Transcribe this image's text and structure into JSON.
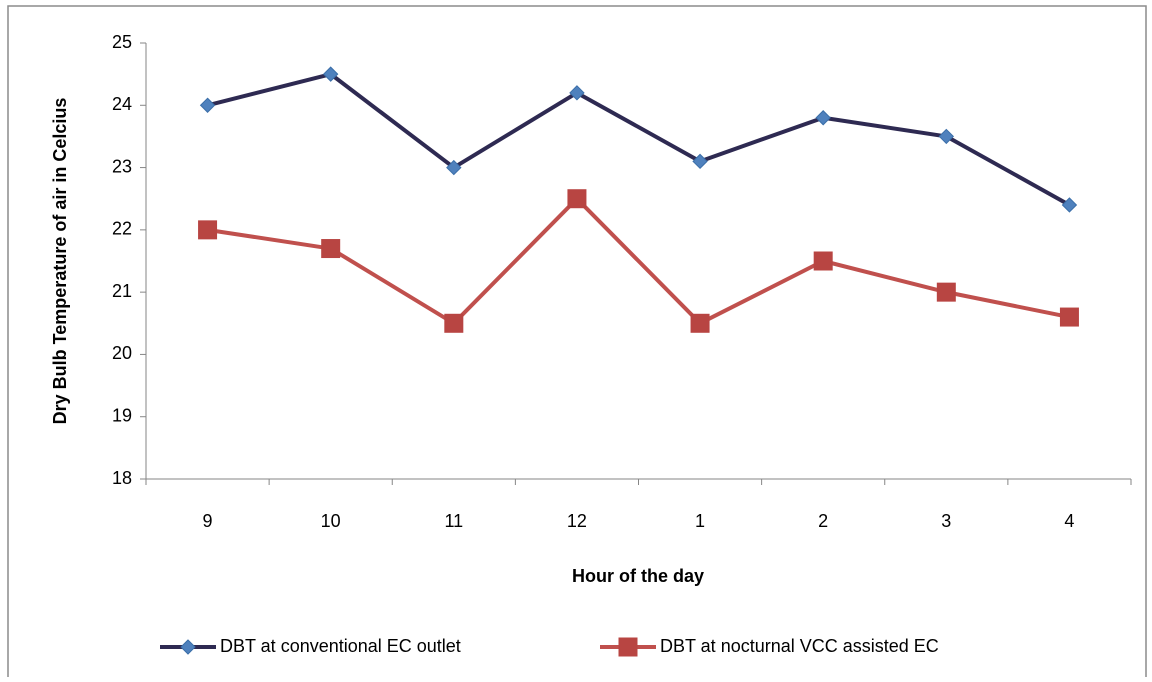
{
  "chart_data": {
    "type": "line",
    "categories": [
      "9",
      "10",
      "11",
      "12",
      "1",
      "2",
      "3",
      "4"
    ],
    "series": [
      {
        "name": "DBT at conventional EC outlet",
        "color": "#2e2a52",
        "marker_color": "#4f81bd",
        "marker": "diamond",
        "values": [
          24,
          24.5,
          23,
          24.2,
          23.1,
          23.8,
          23.5,
          22.4
        ]
      },
      {
        "name": "DBT at nocturnal VCC assisted EC",
        "color": "#c0504d",
        "marker_color": "#b84542",
        "marker": "square",
        "values": [
          22,
          21.7,
          20.5,
          22.5,
          20.5,
          21.5,
          21,
          20.6
        ]
      }
    ],
    "xlabel": "Hour of the day",
    "ylabel": "Dry Bulb Temperature of air in Celcius",
    "ylim": [
      18,
      25
    ],
    "yticks": [
      18,
      19,
      20,
      21,
      22,
      23,
      24,
      25
    ],
    "legend": "bottom",
    "grid": false
  }
}
